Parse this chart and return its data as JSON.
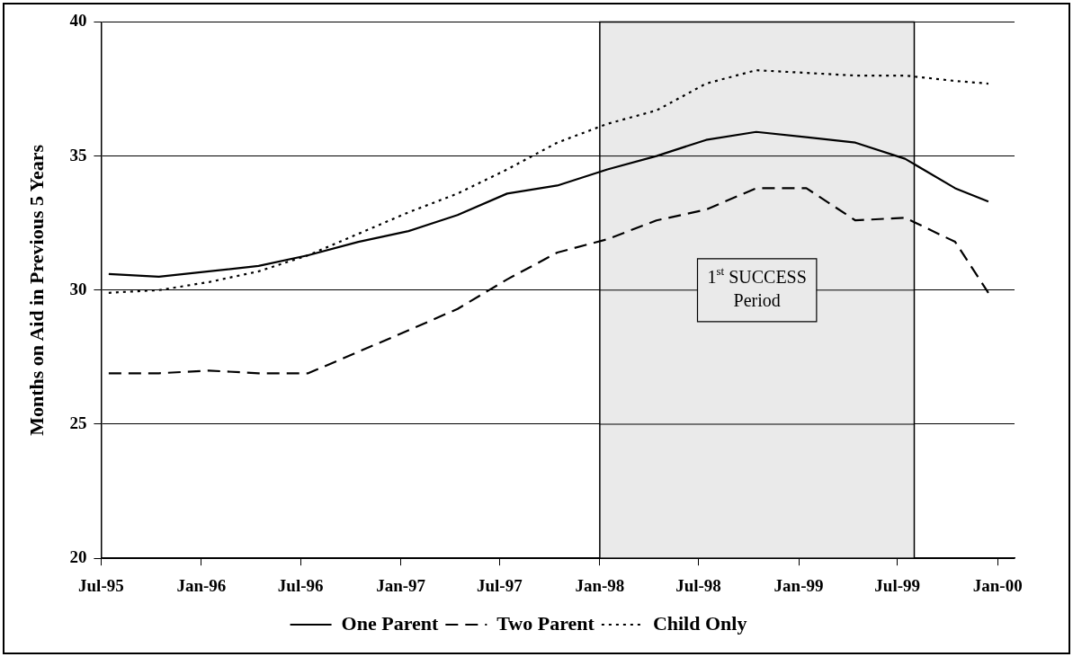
{
  "chart_data": {
    "type": "line",
    "ylabel": "Months on Aid in Previous 5 Years",
    "x": [
      "1995-07-15",
      "1995-10-15",
      "1996-01-15",
      "1996-04-15",
      "1996-07-15",
      "1996-10-15",
      "1997-01-15",
      "1997-04-15",
      "1997-07-15",
      "1997-10-15",
      "1998-01-15",
      "1998-04-15",
      "1998-07-15",
      "1998-10-15",
      "1999-01-15",
      "1999-04-15",
      "1999-07-15",
      "1999-10-15",
      "1999-12-15"
    ],
    "series": [
      {
        "name": "One Parent",
        "color": "#000000",
        "line_style": "solid",
        "values": [
          30.6,
          30.5,
          30.7,
          30.9,
          31.3,
          31.8,
          32.2,
          32.8,
          33.6,
          33.9,
          34.5,
          35.0,
          35.6,
          35.9,
          35.7,
          35.5,
          34.9,
          33.8,
          33.3
        ]
      },
      {
        "name": "Two Parent",
        "color": "#000000",
        "line_style": "dashed",
        "values": [
          26.9,
          26.9,
          27.0,
          26.9,
          26.9,
          27.7,
          28.5,
          29.3,
          30.4,
          31.4,
          31.9,
          32.6,
          33.0,
          33.8,
          33.8,
          32.6,
          32.7,
          31.8,
          29.9
        ]
      },
      {
        "name": "Child Only",
        "color": "#000000",
        "line_style": "dotted",
        "values": [
          29.9,
          30.0,
          30.3,
          30.7,
          31.3,
          32.1,
          32.9,
          33.6,
          34.5,
          35.5,
          36.2,
          36.7,
          37.7,
          38.2,
          38.1,
          38.0,
          38.0,
          37.8,
          37.7
        ]
      }
    ],
    "xlim": [
      "1995-07-01",
      "2000-02-01"
    ],
    "xticks": [
      {
        "value": "1995-07-01",
        "label": "Jul-95"
      },
      {
        "value": "1996-01-01",
        "label": "Jan-96"
      },
      {
        "value": "1996-07-01",
        "label": "Jul-96"
      },
      {
        "value": "1997-01-01",
        "label": "Jan-97"
      },
      {
        "value": "1997-07-01",
        "label": "Jul-97"
      },
      {
        "value": "1998-01-01",
        "label": "Jan-98"
      },
      {
        "value": "1998-07-01",
        "label": "Jul-98"
      },
      {
        "value": "1999-01-01",
        "label": "Jan-99"
      },
      {
        "value": "1999-07-01",
        "label": "Jul-99"
      },
      {
        "value": "2000-01-01",
        "label": "Jan-00"
      }
    ],
    "ylim": [
      20,
      40
    ],
    "yticks": [
      20,
      25,
      30,
      35,
      40
    ],
    "bands": [
      {
        "axis": "x",
        "from": "1998-01-01",
        "to": "1999-08-01",
        "label": "1$^{st}$ SUCCESS\nPeriod",
        "color": "#eaeaea"
      }
    ],
    "grid": "y",
    "legend": "bottom",
    "marker": "none"
  }
}
